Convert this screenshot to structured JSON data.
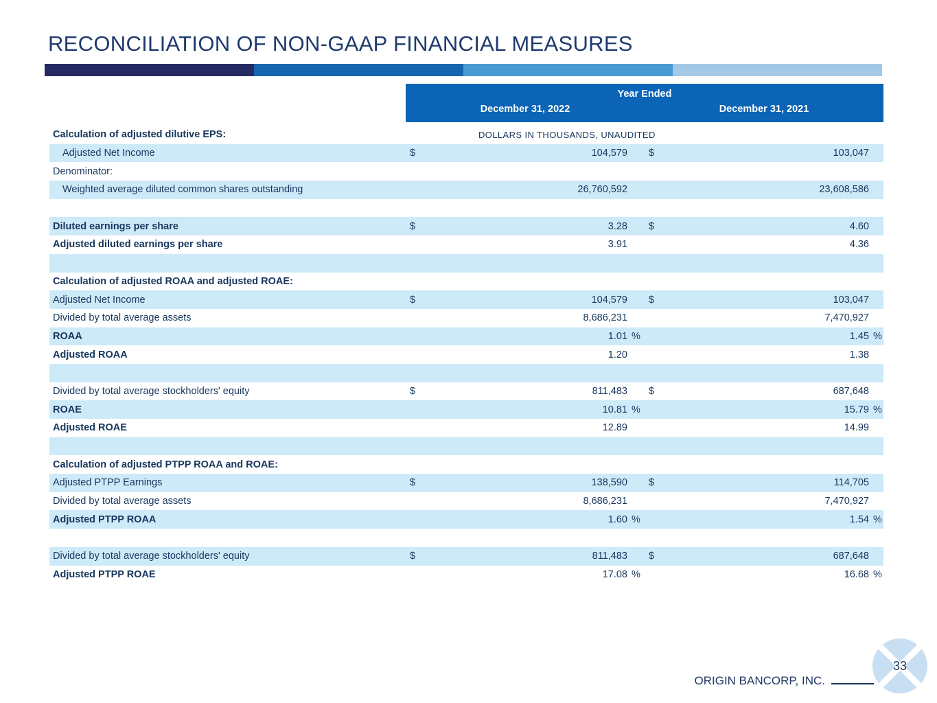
{
  "page": {
    "title": "RECONCILIATION OF NON-GAAP FINANCIAL MEASURES",
    "footer_company": "ORIGIN BANCORP, INC.",
    "page_number": "33"
  },
  "colors": {
    "title_navy": "#1e3a6e",
    "body_navy": "#17365d",
    "header_blue": "#0b64b5",
    "row_light_blue": "#cdeaf9",
    "bar_segments": [
      "#262a62",
      "#1765af",
      "#4a9ad4",
      "#a3c9e7"
    ],
    "circle_blue": "#c8def2"
  },
  "symbols": {
    "dollar": "$",
    "percent": "%"
  },
  "table": {
    "header": {
      "group_label": "Year Ended",
      "col_2022": "December 31, 2022",
      "col_2021": "December 31, 2021"
    },
    "unit_note": "DOLLARS IN THOUSANDS, UNAUDITED",
    "rows": [
      {
        "label": "Calculation of adjusted dilutive EPS:",
        "bold": true,
        "bg": "white",
        "note": true
      },
      {
        "label": "Adjusted Net Income",
        "indent": true,
        "bg": "blue",
        "dollar": true,
        "v1": "104,579",
        "v2": "103,047"
      },
      {
        "label": "Denominator:",
        "bg": "white"
      },
      {
        "label": "Weighted average diluted common shares outstanding",
        "indent": true,
        "bg": "blue",
        "v1": "26,760,592",
        "v2": "23,608,586"
      },
      {
        "spacer": true,
        "bg": "white"
      },
      {
        "label": "Diluted earnings per share",
        "bold": true,
        "bg": "blue",
        "dollar": true,
        "v1": "3.28",
        "v2": "4.60"
      },
      {
        "label": "Adjusted diluted earnings per share",
        "bold": true,
        "bg": "white",
        "v1": "3.91",
        "v2": "4.36"
      },
      {
        "spacer": true,
        "bg": "blue"
      },
      {
        "label": "Calculation of adjusted ROAA and adjusted ROAE:",
        "bold": true,
        "bg": "white"
      },
      {
        "label": "Adjusted Net Income",
        "bg": "blue",
        "dollar": true,
        "v1": "104,579",
        "v2": "103,047"
      },
      {
        "label": "Divided by total average assets",
        "bg": "white",
        "v1": "8,686,231",
        "v2": "7,470,927"
      },
      {
        "label": "ROAA",
        "bold": true,
        "bg": "blue",
        "v1": "1.01",
        "v2": "1.45",
        "pct": true
      },
      {
        "label": "Adjusted ROAA",
        "bold": true,
        "bg": "white",
        "v1": "1.20",
        "v2": "1.38"
      },
      {
        "spacer": true,
        "bg": "blue"
      },
      {
        "label": "Divided by total average stockholders' equity",
        "bg": "white",
        "dollar": true,
        "v1": "811,483",
        "v2": "687,648"
      },
      {
        "label": "ROAE",
        "bold": true,
        "bg": "blue",
        "v1": "10.81",
        "v2": "15.79",
        "pct": true
      },
      {
        "label": "Adjusted ROAE",
        "bold": true,
        "bg": "white",
        "v1": "12.89",
        "v2": "14.99"
      },
      {
        "spacer": true,
        "bg": "blue"
      },
      {
        "label": "Calculation of adjusted PTPP ROAA and ROAE:",
        "bold": true,
        "bg": "white"
      },
      {
        "label": "Adjusted PTPP Earnings",
        "bg": "blue",
        "dollar": true,
        "v1": "138,590",
        "v2": "114,705"
      },
      {
        "label": "Divided by total average assets",
        "bg": "white",
        "v1": "8,686,231",
        "v2": "7,470,927"
      },
      {
        "label": "Adjusted PTPP ROAA",
        "bold": true,
        "bg": "blue",
        "v1": "1.60",
        "v2": "1.54",
        "pct": true
      },
      {
        "spacer": true,
        "bg": "white"
      },
      {
        "label": "Divided by total average stockholders' equity",
        "bg": "blue",
        "dollar": true,
        "v1": "811,483",
        "v2": "687,648"
      },
      {
        "label": "Adjusted PTPP ROAE",
        "bold": true,
        "bg": "white",
        "v1": "17.08",
        "v2": "16.68",
        "pct": true
      }
    ]
  }
}
